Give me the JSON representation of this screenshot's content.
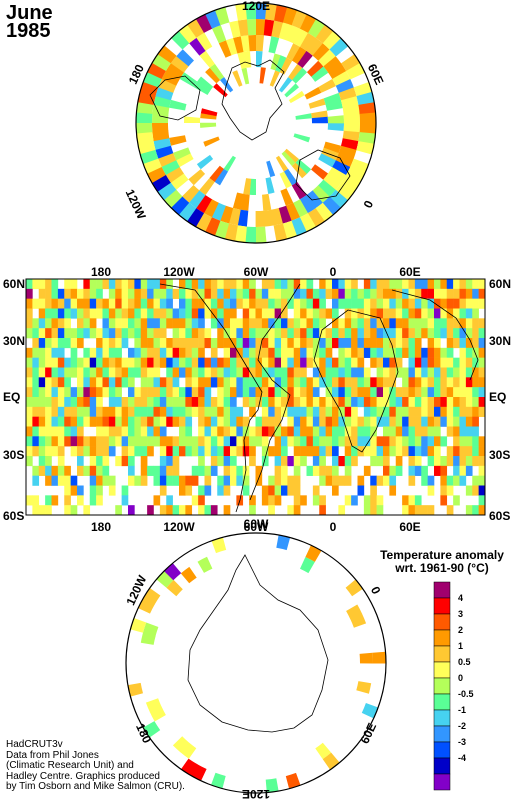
{
  "map": {
    "month": "June",
    "year": "1985",
    "lon_labels": [
      "180",
      "120W",
      "60W",
      "0",
      "60E"
    ],
    "lat_labels": [
      "60N",
      "30N",
      "EQ",
      "30S",
      "60S"
    ],
    "north_pole_labels": [
      "120E",
      "60E",
      "0",
      "120W",
      "180"
    ],
    "south_pole_labels": [
      "60W",
      "0",
      "60E",
      "120E",
      "180",
      "120W"
    ],
    "credits": [
      "HadCRUT3v",
      "Data from Phil Jones",
      "(Climatic Research Unit) and",
      "Hadley Centre.  Graphics produced",
      "by Tim Osborn and Mike Salmon (CRU)."
    ]
  },
  "legend": {
    "title_line1": "Temperature anomaly",
    "title_line2": "wrt. 1961-90  (°C)",
    "labels": [
      "4",
      "3",
      "2",
      "1",
      "0.5",
      "0",
      "-0.5",
      "-1",
      "-2",
      "-3",
      "-4"
    ],
    "colors": [
      "#a0006e",
      "#ff0000",
      "#ff5a00",
      "#ff9a00",
      "#ffc832",
      "#ffff5a",
      "#b4ff5a",
      "#5aff96",
      "#46d2f0",
      "#3296ff",
      "#0050ff",
      "#0000c8",
      "#8200c8"
    ]
  }
}
